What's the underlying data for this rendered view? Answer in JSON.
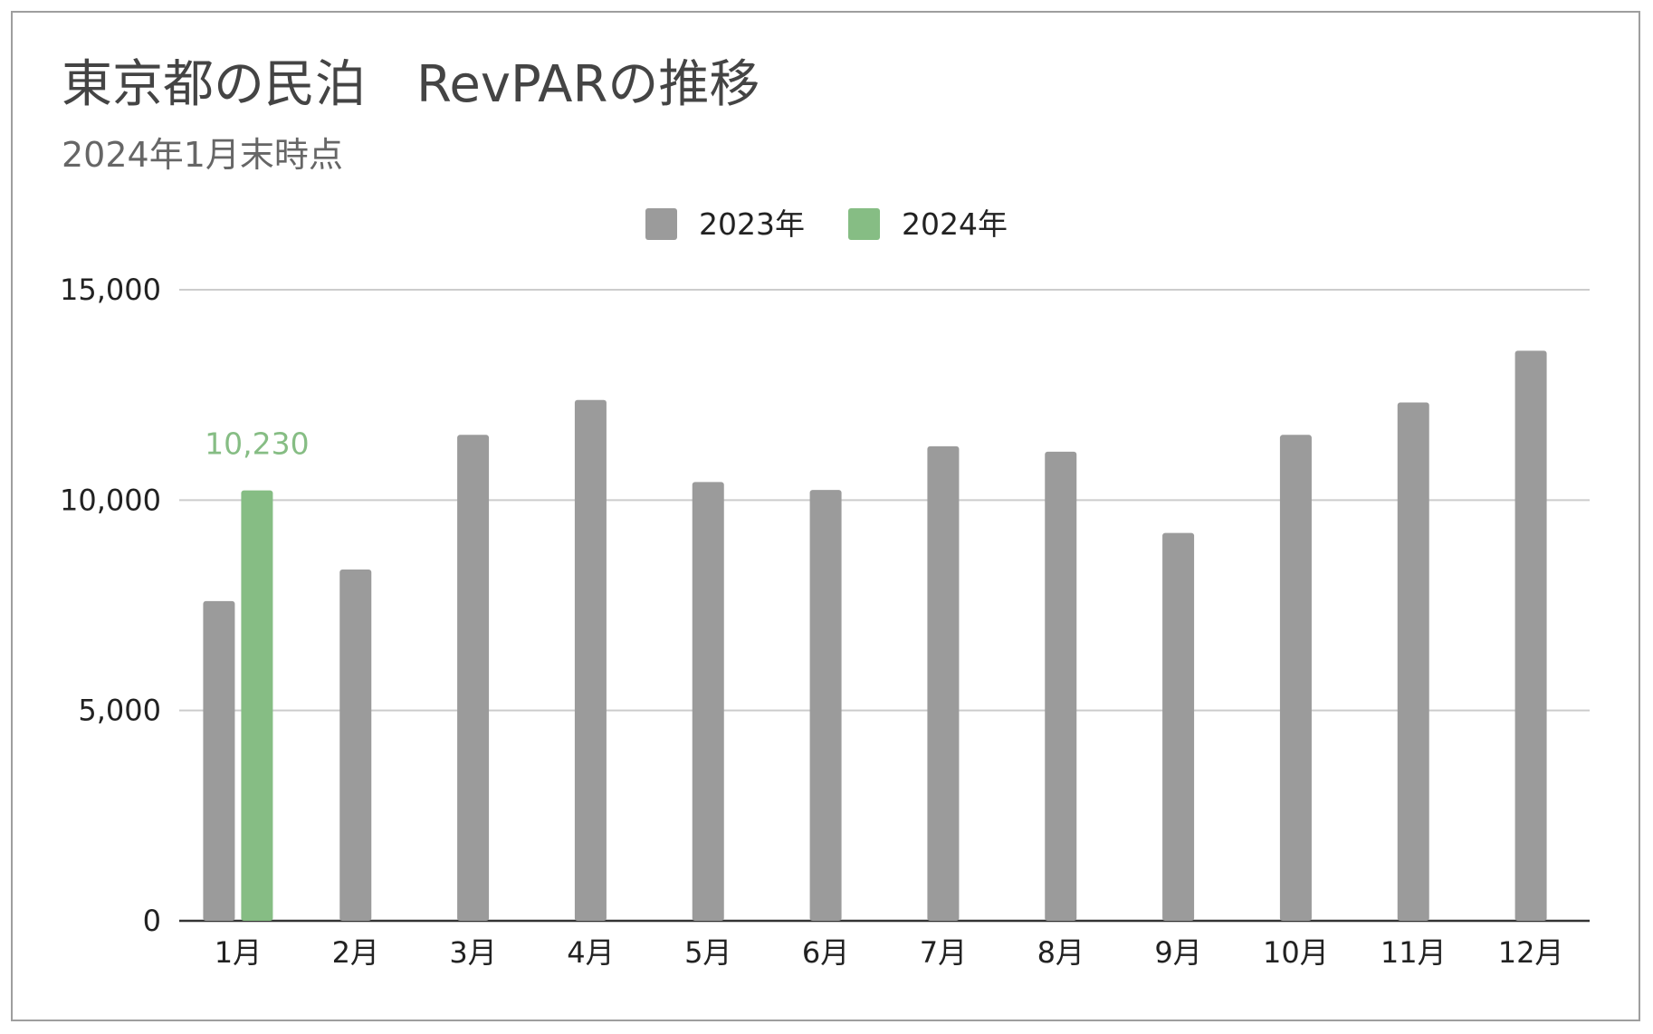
{
  "chart_data": {
    "type": "bar",
    "title": "東京都の民泊　RevPARの推移",
    "subtitle": "2024年1月末時点",
    "categories": [
      "1月",
      "2月",
      "3月",
      "4月",
      "5月",
      "6月",
      "7月",
      "8月",
      "9月",
      "10月",
      "11月",
      "12月"
    ],
    "series": [
      {
        "name": "2023年",
        "color": "#9b9b9b",
        "values": [
          7600,
          8350,
          11550,
          12380,
          10430,
          10240,
          11280,
          11150,
          9220,
          11550,
          12320,
          13550
        ]
      },
      {
        "name": "2024年",
        "color": "#86bd84",
        "values": [
          10230,
          null,
          null,
          null,
          null,
          null,
          null,
          null,
          null,
          null,
          null,
          null
        ]
      }
    ],
    "data_labels": [
      {
        "series": 1,
        "index": 0,
        "text": "10,230"
      }
    ],
    "ylim": [
      0,
      15000
    ],
    "yticks": [
      0,
      5000,
      10000,
      15000
    ],
    "ytick_labels": [
      "0",
      "5,000",
      "10,000",
      "15,000"
    ],
    "xlabel": "",
    "ylabel": "",
    "grid": true,
    "legend_position": "top-center",
    "axis_color": "#333333",
    "grid_color": "#cccccc"
  }
}
